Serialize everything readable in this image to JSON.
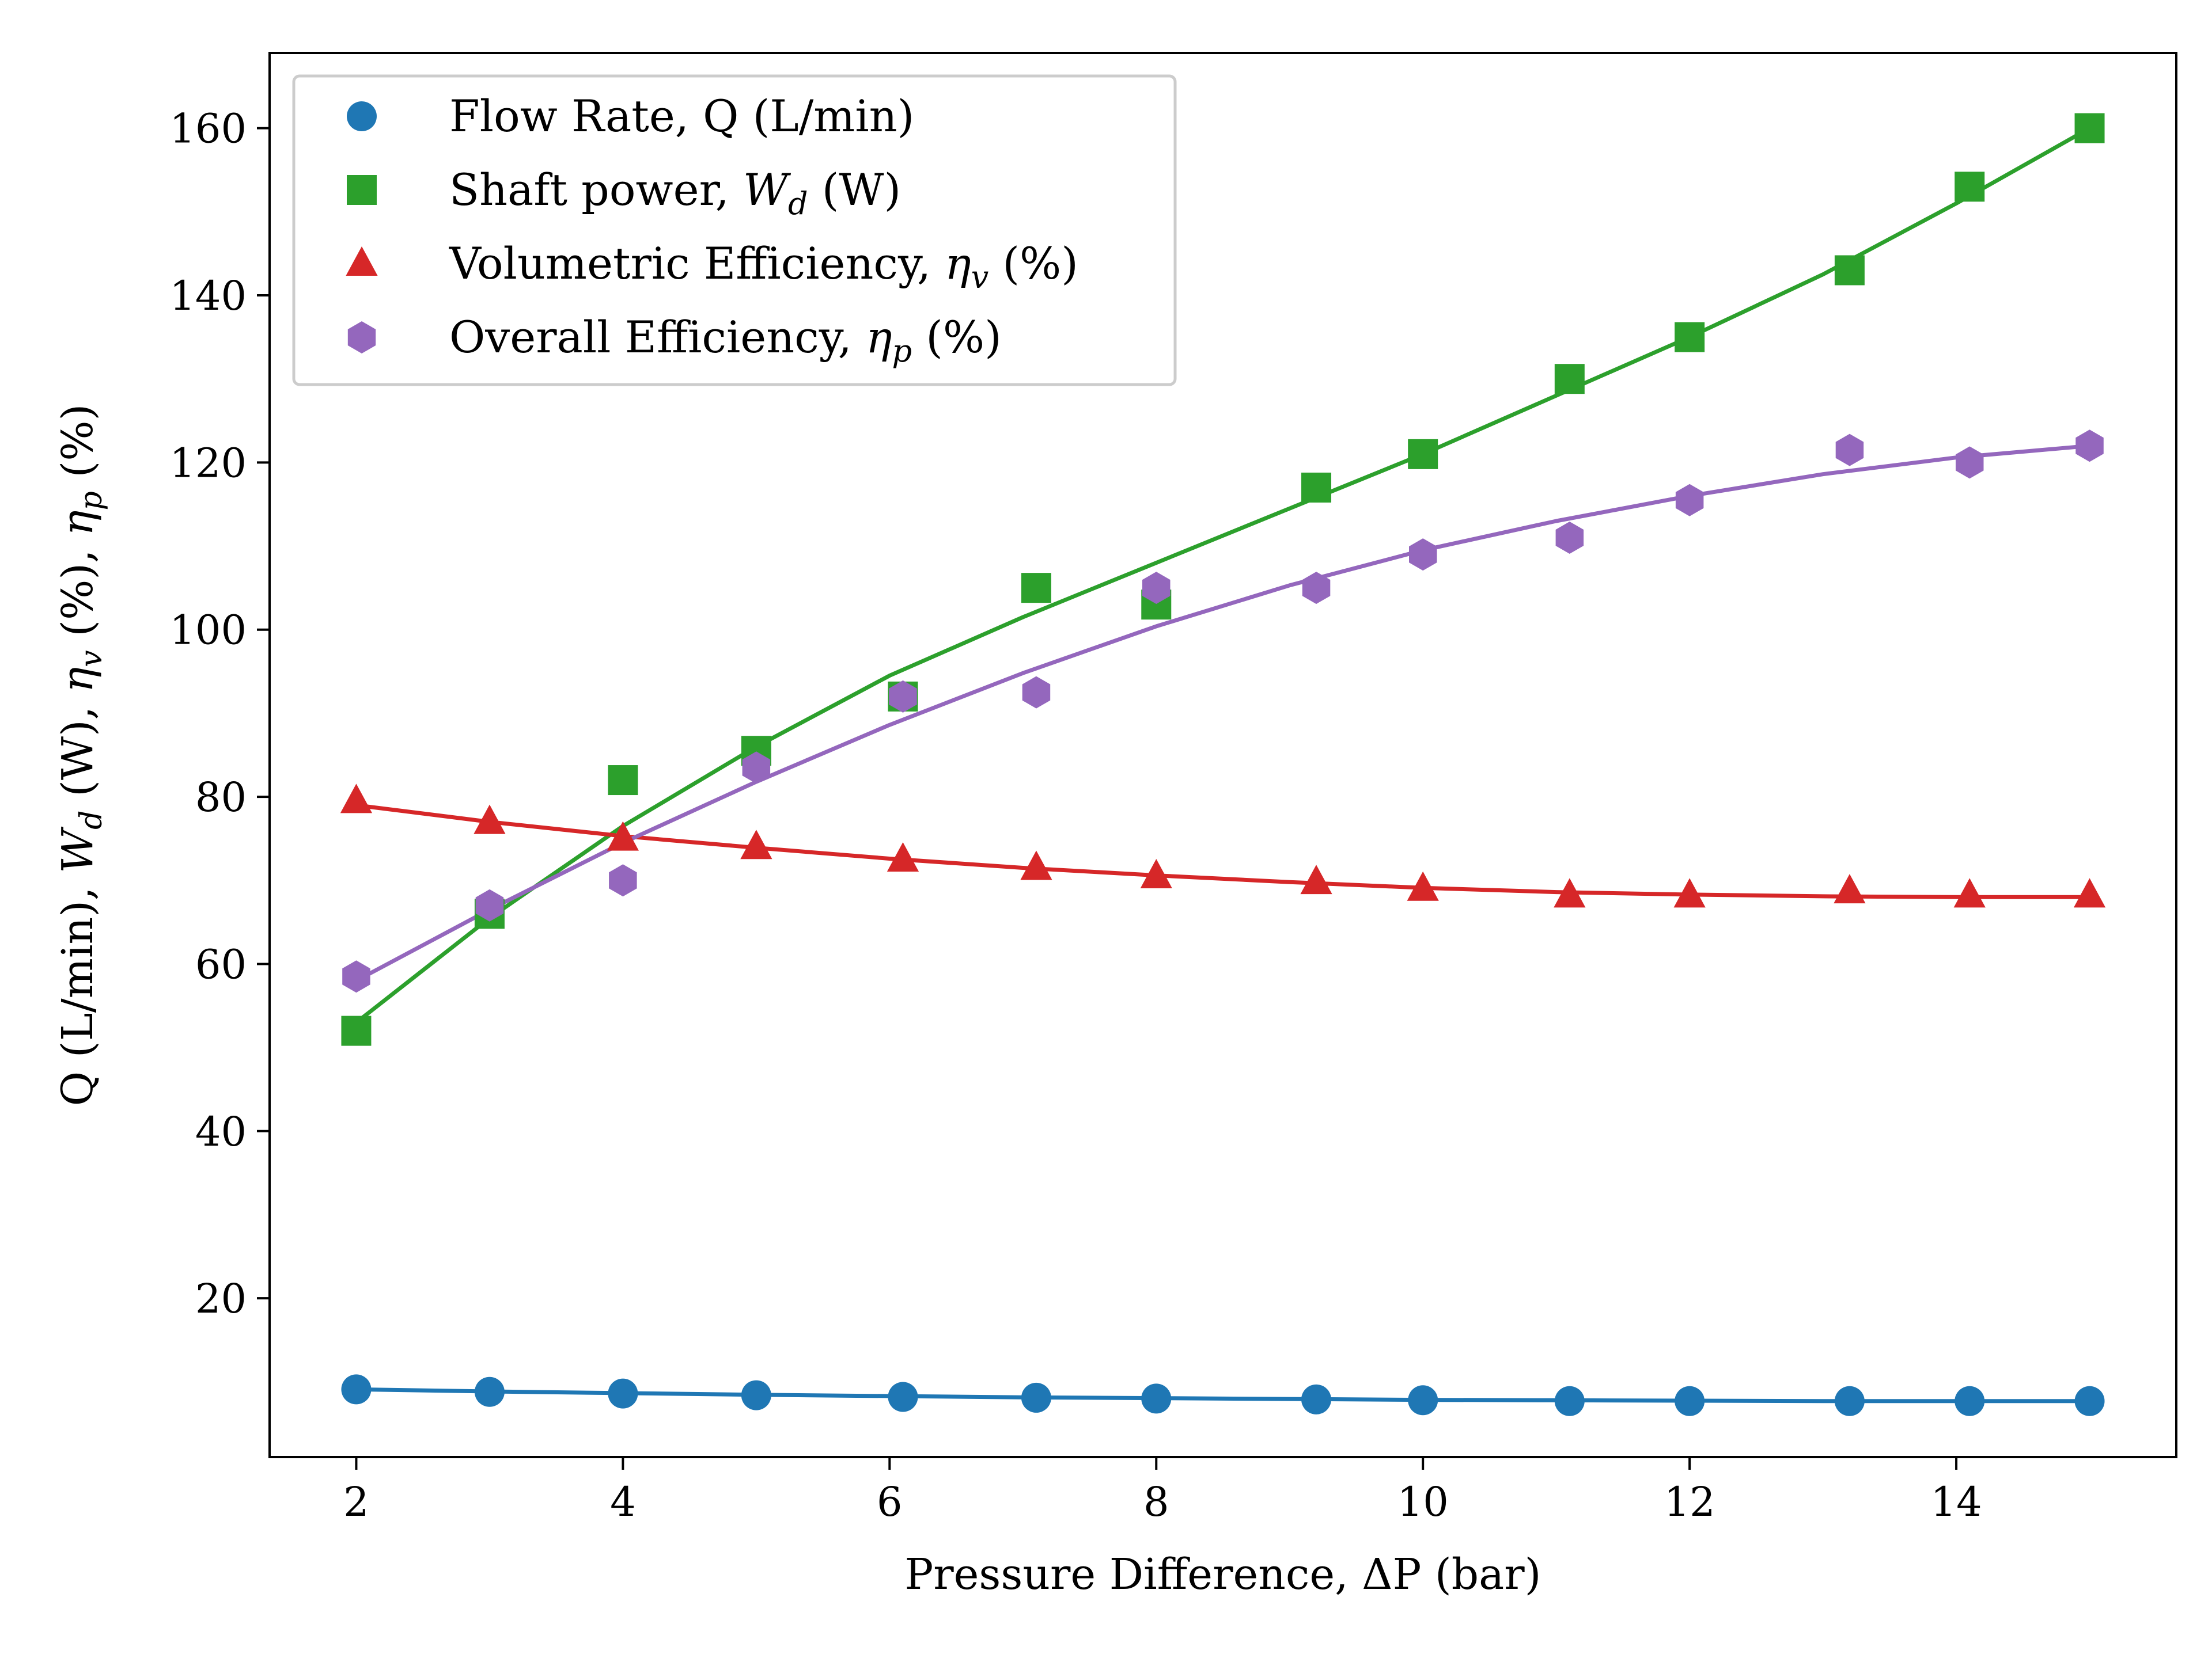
{
  "chart_data": {
    "type": "scatter",
    "title": "",
    "xlabel": "Pressure Difference, ΔP (bar)",
    "ylabel_parts": [
      "Q (L/min), ",
      "W",
      "d",
      " (W), ",
      "η",
      "v",
      " (%), ",
      "η",
      "p",
      " (%)"
    ],
    "xlim": [
      1.35,
      15.65
    ],
    "ylim": [
      1,
      169
    ],
    "xticks": [
      2,
      4,
      6,
      8,
      10,
      12,
      14
    ],
    "yticks": [
      20,
      40,
      60,
      80,
      100,
      120,
      140,
      160
    ],
    "grid": false,
    "legend_position": "top-left",
    "series": [
      {
        "key": "flow",
        "label_parts": [
          {
            "t": "Flow Rate, Q (L/min)"
          }
        ],
        "color": "#1f77b4",
        "marker": "circle",
        "x": [
          2,
          3,
          4,
          5,
          6.1,
          7.1,
          8,
          9.2,
          10,
          11.1,
          12,
          13.2,
          14.1,
          15
        ],
        "y": [
          9.1,
          8.8,
          8.6,
          8.4,
          8.2,
          8.1,
          8.0,
          7.9,
          7.8,
          7.7,
          7.7,
          7.7,
          7.7,
          7.7
        ],
        "fit_x": [
          2,
          3,
          4,
          5,
          6,
          7,
          8,
          9,
          10,
          11,
          12,
          13,
          14,
          15
        ],
        "fit_y": [
          9.1,
          8.85,
          8.65,
          8.45,
          8.3,
          8.15,
          8.05,
          7.95,
          7.85,
          7.8,
          7.75,
          7.7,
          7.7,
          7.7
        ]
      },
      {
        "key": "shaft",
        "label_parts": [
          {
            "t": "Shaft power, "
          },
          {
            "t": "W",
            "i": true
          },
          {
            "t": "d",
            "i": true,
            "sub": true
          },
          {
            "t": " (W)"
          }
        ],
        "color": "#2ca02c",
        "marker": "square",
        "x": [
          2,
          3,
          4,
          5,
          6.1,
          7.1,
          8,
          9.2,
          10,
          11.1,
          12,
          13.2,
          14.1,
          15
        ],
        "y": [
          52,
          66,
          82,
          85.5,
          92,
          105,
          103,
          117,
          121,
          130,
          135,
          143,
          153,
          160
        ],
        "fit_x": [
          2,
          3,
          4,
          5,
          6,
          7,
          8,
          9,
          10,
          11,
          12,
          13,
          14,
          15
        ],
        "fit_y": [
          53,
          65.5,
          76.5,
          86,
          94.5,
          101.5,
          108,
          114.5,
          121,
          128,
          135,
          142.5,
          151,
          160
        ]
      },
      {
        "key": "vol_eff",
        "label_parts": [
          {
            "t": "Volumetric Efficiency, "
          },
          {
            "t": "η",
            "i": true
          },
          {
            "t": "v",
            "i": true,
            "sub": true
          },
          {
            "t": " (%)"
          }
        ],
        "color": "#d62728",
        "marker": "triangle",
        "x": [
          2,
          3,
          4,
          5,
          6.1,
          7.1,
          8,
          9.2,
          10,
          11.1,
          12,
          13.2,
          14.1,
          15
        ],
        "y": [
          79.5,
          77,
          75,
          74,
          72.5,
          71.5,
          70.5,
          69.8,
          69,
          68.2,
          68.2,
          68.7,
          68.2,
          68.2
        ],
        "fit_x": [
          2,
          3,
          4,
          5,
          6,
          7,
          8,
          9,
          10,
          11,
          12,
          13,
          14,
          15
        ],
        "fit_y": [
          79,
          77,
          75.3,
          73.9,
          72.6,
          71.5,
          70.6,
          69.8,
          69.1,
          68.6,
          68.3,
          68.1,
          68.0,
          68.0
        ]
      },
      {
        "key": "overall_eff",
        "label_parts": [
          {
            "t": "Overall Efficiency, "
          },
          {
            "t": "η",
            "i": true
          },
          {
            "t": "p",
            "i": true,
            "sub": true
          },
          {
            "t": " (%)"
          }
        ],
        "color": "#9467bd",
        "marker": "hexagon",
        "x": [
          2,
          3,
          4,
          5,
          6.1,
          7.1,
          8,
          9.2,
          10,
          11.1,
          12,
          13.2,
          14.1,
          15
        ],
        "y": [
          58.5,
          67,
          70,
          83.5,
          92,
          92.5,
          105,
          105,
          109,
          111,
          115.5,
          121.5,
          120,
          122
        ],
        "fit_x": [
          2,
          3,
          4,
          5,
          6,
          7,
          8,
          9,
          10,
          11,
          12,
          13,
          14,
          15
        ],
        "fit_y": [
          58,
          66.5,
          74.5,
          81.8,
          88.6,
          94.8,
          100.4,
          105.3,
          109.5,
          113,
          116,
          118.6,
          120.6,
          122
        ]
      }
    ]
  }
}
